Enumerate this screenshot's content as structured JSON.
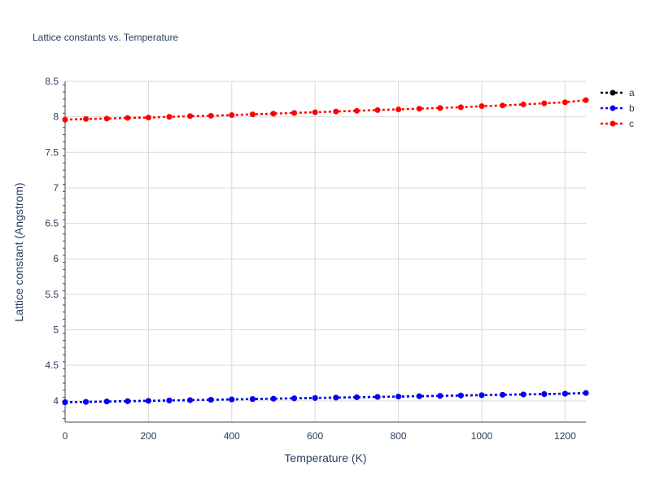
{
  "chart_data": {
    "type": "line",
    "title": "Lattice constants vs. Temperature",
    "xlabel": "Temperature (K)",
    "ylabel": "Lattice constant (Angstrom)",
    "xlim": [
      0,
      1250
    ],
    "ylim": [
      3.7,
      8.5
    ],
    "xticks": [
      0,
      200,
      400,
      600,
      800,
      1000,
      1200
    ],
    "xtick_labels": [
      "0",
      "200",
      "400",
      "600",
      "800",
      "1000",
      "1200"
    ],
    "yticks": [
      4,
      4.5,
      5,
      5.5,
      6,
      6.5,
      7,
      7.5,
      8,
      8.5
    ],
    "ytick_labels": [
      "4",
      "4.5",
      "5",
      "5.5",
      "6",
      "6.5",
      "7",
      "7.5",
      "8",
      "8.5"
    ],
    "grid": true,
    "legend_position": "top-right",
    "x": [
      0,
      50,
      100,
      150,
      200,
      250,
      300,
      350,
      400,
      450,
      500,
      550,
      600,
      650,
      700,
      750,
      800,
      850,
      900,
      950,
      1000,
      1050,
      1100,
      1150,
      1200,
      1250
    ],
    "series": [
      {
        "name": "a",
        "color": "#000000",
        "line_style": "dotted",
        "marker": "circle",
        "values": [
          3.98,
          3.985,
          3.99,
          3.995,
          4.0,
          4.005,
          4.01,
          4.015,
          4.02,
          4.025,
          4.03,
          4.035,
          4.04,
          4.045,
          4.05,
          4.055,
          4.06,
          4.065,
          4.07,
          4.075,
          4.08,
          4.085,
          4.09,
          4.095,
          4.1,
          4.11
        ]
      },
      {
        "name": "b",
        "color": "#0000ff",
        "line_style": "dotted",
        "marker": "circle",
        "values": [
          3.98,
          3.985,
          3.99,
          3.995,
          4.0,
          4.005,
          4.01,
          4.015,
          4.02,
          4.025,
          4.03,
          4.035,
          4.04,
          4.045,
          4.05,
          4.055,
          4.06,
          4.065,
          4.07,
          4.075,
          4.08,
          4.085,
          4.09,
          4.095,
          4.1,
          4.11
        ]
      },
      {
        "name": "c",
        "color": "#ff0000",
        "line_style": "dotted",
        "marker": "circle",
        "values": [
          7.96,
          7.97,
          7.975,
          7.985,
          7.99,
          8.0,
          8.01,
          8.015,
          8.025,
          8.035,
          8.045,
          8.055,
          8.065,
          8.075,
          8.085,
          8.095,
          8.105,
          8.115,
          8.125,
          8.135,
          8.15,
          8.16,
          8.175,
          8.19,
          8.205,
          8.235
        ]
      }
    ]
  }
}
